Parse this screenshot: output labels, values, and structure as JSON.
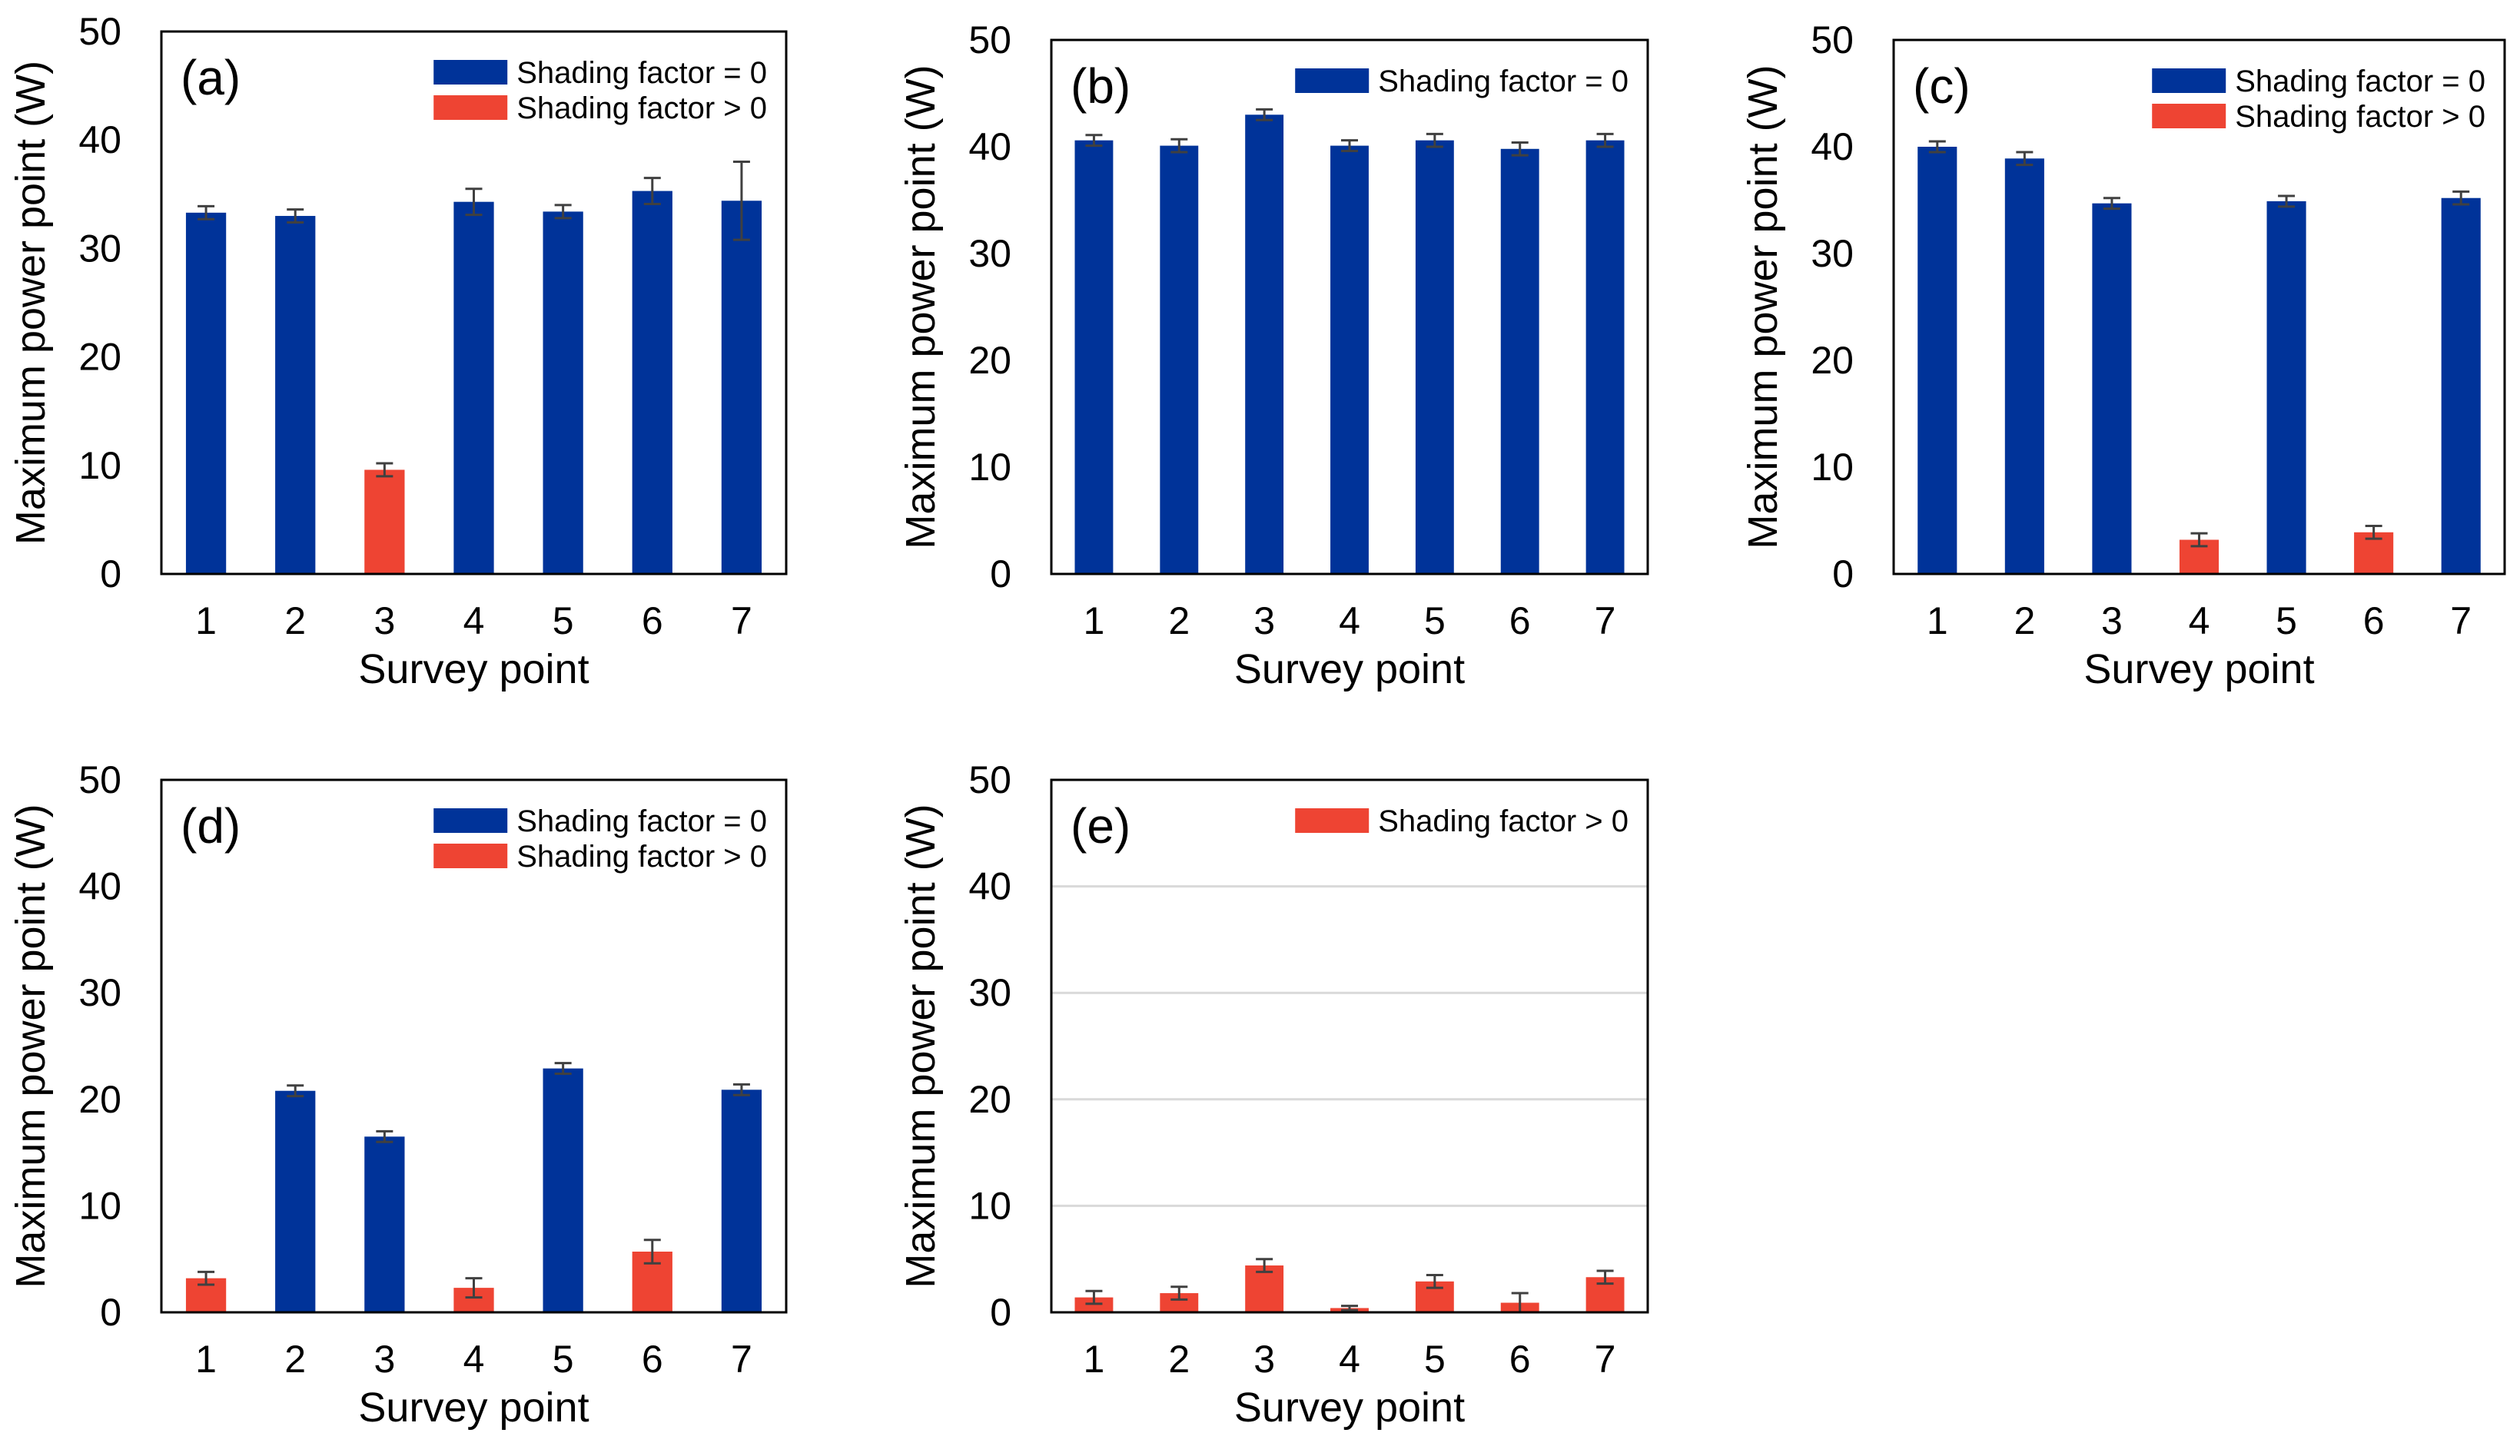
{
  "colors": {
    "shading_zero": "#003399",
    "shading_positive": "#EE4433",
    "error_bar": "#404040",
    "gridline": "#D9D9D9",
    "axis": "#000000"
  },
  "chart_data": [
    {
      "type": "bar",
      "panel_label": "(a)",
      "xlabel": "Survey point",
      "ylabel": "Maximum power point (W)",
      "ylim": [
        0,
        50
      ],
      "yticks": [
        "0",
        "10",
        "20",
        "30",
        "40",
        "50"
      ],
      "grid": false,
      "categories": [
        "1",
        "2",
        "3",
        "4",
        "5",
        "6",
        "7"
      ],
      "values": [
        33.3,
        33.0,
        9.6,
        34.3,
        33.4,
        35.3,
        34.4
      ],
      "errors": [
        0.6,
        0.6,
        0.6,
        1.2,
        0.6,
        1.2,
        3.6
      ],
      "shading": [
        "zero",
        "zero",
        "positive",
        "zero",
        "zero",
        "zero",
        "zero"
      ],
      "legend": [
        {
          "key": "zero",
          "label": "Shading factor = 0"
        },
        {
          "key": "positive",
          "label": "Shading factor > 0"
        }
      ],
      "legend_position": "top-right"
    },
    {
      "type": "bar",
      "panel_label": "(b)",
      "xlabel": "Survey point",
      "ylabel": "Maximum power point (W)",
      "ylim": [
        0,
        50
      ],
      "yticks": [
        "0",
        "10",
        "20",
        "30",
        "40",
        "50"
      ],
      "grid": false,
      "categories": [
        "1",
        "2",
        "3",
        "4",
        "5",
        "6",
        "7"
      ],
      "values": [
        40.6,
        40.1,
        43.0,
        40.1,
        40.6,
        39.8,
        40.6
      ],
      "errors": [
        0.5,
        0.6,
        0.5,
        0.5,
        0.6,
        0.6,
        0.6
      ],
      "shading": [
        "zero",
        "zero",
        "zero",
        "zero",
        "zero",
        "zero",
        "zero"
      ],
      "legend": [
        {
          "key": "zero",
          "label": "Shading factor = 0"
        }
      ],
      "legend_position": "top-right"
    },
    {
      "type": "bar",
      "panel_label": "(c)",
      "xlabel": "Survey point",
      "ylabel": "Maximum power point (W)",
      "ylim": [
        0,
        50
      ],
      "yticks": [
        "0",
        "10",
        "20",
        "30",
        "40",
        "50"
      ],
      "grid": false,
      "categories": [
        "1",
        "2",
        "3",
        "4",
        "5",
        "6",
        "7"
      ],
      "values": [
        40.0,
        38.9,
        34.7,
        3.2,
        34.9,
        3.9,
        35.2
      ],
      "errors": [
        0.5,
        0.6,
        0.5,
        0.6,
        0.5,
        0.6,
        0.6
      ],
      "shading": [
        "zero",
        "zero",
        "zero",
        "positive",
        "zero",
        "positive",
        "zero"
      ],
      "legend": [
        {
          "key": "zero",
          "label": "Shading factor = 0"
        },
        {
          "key": "positive",
          "label": "Shading factor > 0"
        }
      ],
      "legend_position": "top-right"
    },
    {
      "type": "bar",
      "panel_label": "(d)",
      "xlabel": "Survey point",
      "ylabel": "Maximum power point (W)",
      "ylim": [
        0,
        50
      ],
      "yticks": [
        "0",
        "10",
        "20",
        "30",
        "40",
        "50"
      ],
      "grid": false,
      "categories": [
        "1",
        "2",
        "3",
        "4",
        "5",
        "6",
        "7"
      ],
      "values": [
        3.2,
        20.8,
        16.5,
        2.3,
        22.9,
        5.7,
        20.9
      ],
      "errors": [
        0.6,
        0.5,
        0.5,
        0.9,
        0.5,
        1.1,
        0.5
      ],
      "shading": [
        "positive",
        "zero",
        "zero",
        "positive",
        "zero",
        "positive",
        "zero"
      ],
      "legend": [
        {
          "key": "zero",
          "label": "Shading factor = 0"
        },
        {
          "key": "positive",
          "label": "Shading factor > 0"
        }
      ],
      "legend_position": "top-right"
    },
    {
      "type": "bar",
      "panel_label": "(e)",
      "xlabel": "Survey point",
      "ylabel": "Maximum power point (W)",
      "ylim": [
        0,
        50
      ],
      "yticks": [
        "0",
        "10",
        "20",
        "30",
        "40",
        "50"
      ],
      "grid": true,
      "categories": [
        "1",
        "2",
        "3",
        "4",
        "5",
        "6",
        "7"
      ],
      "values": [
        1.4,
        1.8,
        4.4,
        0.4,
        2.9,
        0.9,
        3.3
      ],
      "errors": [
        0.6,
        0.6,
        0.6,
        0.2,
        0.6,
        0.9,
        0.6
      ],
      "shading": [
        "positive",
        "positive",
        "positive",
        "positive",
        "positive",
        "positive",
        "positive"
      ],
      "legend": [
        {
          "key": "positive",
          "label": "Shading factor > 0"
        }
      ],
      "legend_position": "top-right"
    }
  ]
}
